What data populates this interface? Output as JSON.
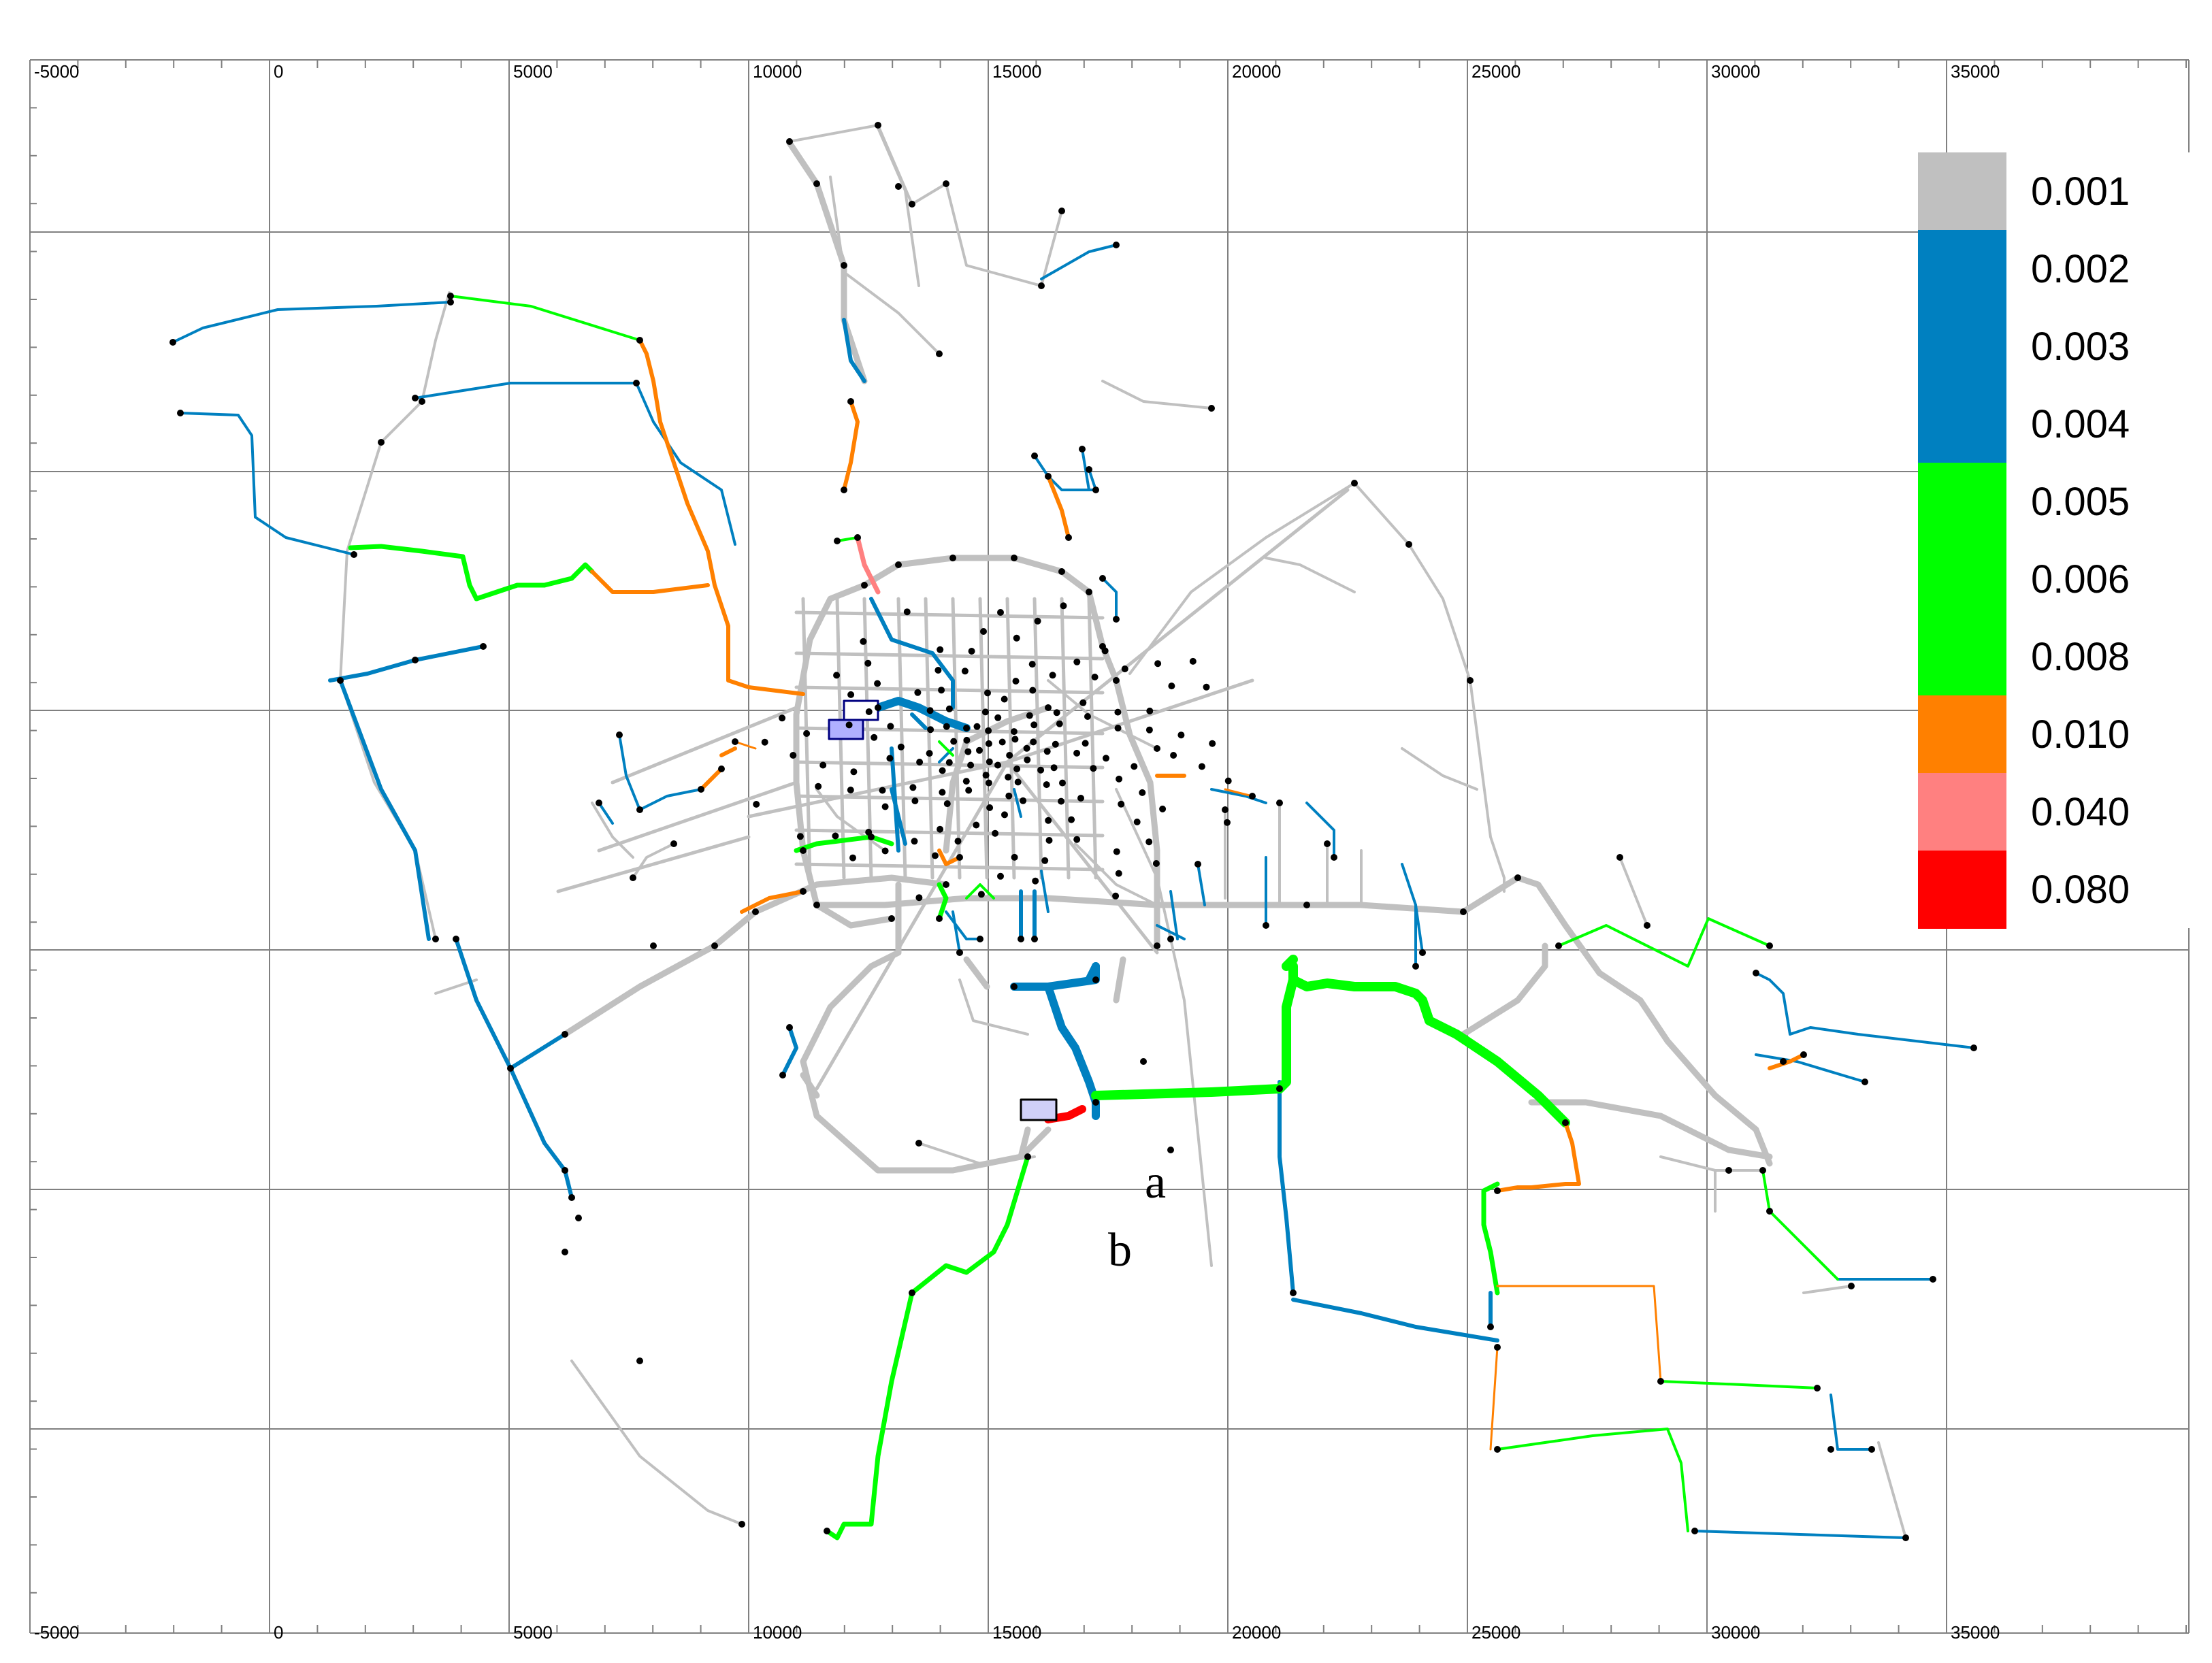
{
  "x_ticks": [
    "-5000",
    "0",
    "5000",
    "10000",
    "15000",
    "20000",
    "25000",
    "30000",
    "35000"
  ],
  "legend": {
    "labels": [
      "0.001",
      "0.002",
      "0.003",
      "0.004",
      "0.005",
      "0.006",
      "0.008",
      "0.010",
      "0.040",
      "0.080"
    ],
    "colors": [
      "#c0c0c0",
      "#0080c0",
      "#0080c0",
      "#0080c0",
      "#00ff00",
      "#00ff00",
      "#00ff00",
      "#ff8000",
      "#ff8080",
      "#ff0000"
    ]
  },
  "annotations": {
    "a": "a",
    "b": "b"
  },
  "colors": {
    "gray": "#c0c0c0",
    "blue": "#0080c0",
    "green": "#00ff00",
    "orange": "#ff8000",
    "pink": "#ff8080",
    "red": "#ff0000",
    "grid": "#808080"
  }
}
